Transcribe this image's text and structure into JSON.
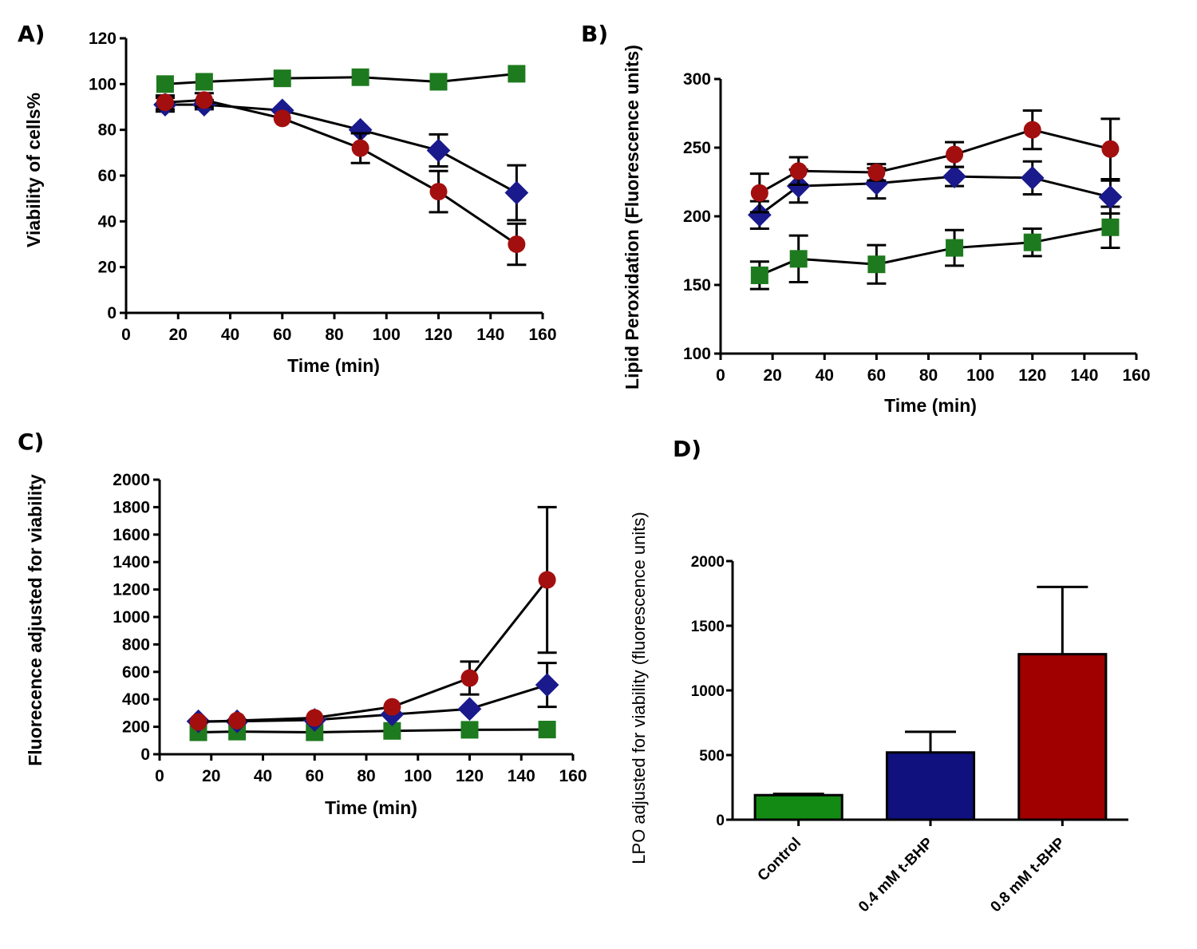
{
  "colors": {
    "control": "#1e7a1e",
    "low": "#1a1a8c",
    "high": "#a30f0f",
    "bar_control": "#138a13",
    "bar_low": "#10107f",
    "bar_high": "#a00000"
  },
  "chart_data": [
    {
      "panel": "A)",
      "type": "line",
      "xlabel": "Time (min)",
      "ylabel": "Viability of cells%",
      "xlim": [
        0,
        160
      ],
      "ylim": [
        0,
        120
      ],
      "xticks": [
        0,
        20,
        40,
        60,
        80,
        100,
        120,
        140,
        160
      ],
      "yticks": [
        0,
        20,
        40,
        60,
        80,
        100,
        120
      ],
      "x": [
        15,
        30,
        60,
        90,
        120,
        150
      ],
      "series": [
        {
          "key": "control",
          "marker": "square",
          "values": [
            100,
            101,
            102.5,
            103,
            101,
            104.5
          ],
          "errors": [
            0,
            0,
            0,
            0,
            0,
            0
          ]
        },
        {
          "key": "low",
          "marker": "diamond",
          "values": [
            91,
            91,
            88.5,
            80,
            71,
            52.5
          ],
          "errors": [
            3,
            2,
            0,
            0,
            7,
            12
          ]
        },
        {
          "key": "high",
          "marker": "circle",
          "values": [
            92,
            93,
            85,
            72,
            53,
            30
          ],
          "errors": [
            3,
            3,
            0,
            6.5,
            9,
            9
          ]
        }
      ]
    },
    {
      "panel": "B)",
      "type": "line",
      "xlabel": "Time (min)",
      "ylabel": "Lipid Peroxidation (Fluorescence units)",
      "xlim": [
        0,
        160
      ],
      "ylim": [
        100,
        300
      ],
      "xticks": [
        0,
        20,
        40,
        60,
        80,
        100,
        120,
        140,
        160
      ],
      "yticks": [
        100,
        150,
        200,
        250,
        300
      ],
      "x": [
        15,
        30,
        60,
        90,
        120,
        150
      ],
      "series": [
        {
          "key": "control",
          "marker": "square",
          "values": [
            157,
            169,
            165,
            177,
            181,
            192
          ],
          "errors": [
            10,
            17,
            14,
            13,
            10,
            15
          ]
        },
        {
          "key": "low",
          "marker": "diamond",
          "values": [
            201,
            222,
            224,
            229,
            228,
            214
          ],
          "errors": [
            10,
            12,
            11,
            7,
            12,
            12
          ]
        },
        {
          "key": "high",
          "marker": "circle",
          "values": [
            217,
            233,
            232,
            245,
            263,
            249
          ],
          "errors": [
            14,
            10,
            6,
            9,
            14,
            22
          ]
        }
      ]
    },
    {
      "panel": "C)",
      "type": "line",
      "xlabel": "Time (min)",
      "ylabel": "Fluorecence adjusted for viability",
      "xlim": [
        0,
        160
      ],
      "ylim": [
        0,
        2000
      ],
      "xticks": [
        0,
        20,
        40,
        60,
        80,
        100,
        120,
        140,
        160
      ],
      "yticks": [
        0,
        200,
        400,
        600,
        800,
        1000,
        1200,
        1400,
        1600,
        1800,
        2000
      ],
      "x": [
        15,
        30,
        60,
        90,
        120,
        150
      ],
      "series": [
        {
          "key": "control",
          "marker": "square",
          "values": [
            160,
            165,
            160,
            170,
            178,
            180
          ],
          "errors": [
            0,
            0,
            0,
            0,
            0,
            0
          ]
        },
        {
          "key": "low",
          "marker": "diamond",
          "values": [
            240,
            240,
            250,
            290,
            330,
            505
          ],
          "errors": [
            0,
            0,
            0,
            0,
            0,
            160
          ]
        },
        {
          "key": "high",
          "marker": "circle",
          "values": [
            235,
            245,
            265,
            345,
            555,
            1270
          ],
          "errors": [
            0,
            0,
            0,
            0,
            120,
            530
          ]
        }
      ]
    },
    {
      "panel": "D)",
      "type": "bar",
      "xlabel": "",
      "ylabel": "LPO adjusted for viability (fluorescence units)",
      "ylim": [
        0,
        2000
      ],
      "yticks": [
        0,
        500,
        1000,
        1500,
        2000
      ],
      "categories": [
        "Control",
        "0.4 mM t-BHP",
        "0.8 mM t-BHP"
      ],
      "keys": [
        "bar_control",
        "bar_low",
        "bar_high"
      ],
      "values": [
        190,
        520,
        1280
      ],
      "errors": [
        10,
        160,
        520
      ]
    }
  ]
}
